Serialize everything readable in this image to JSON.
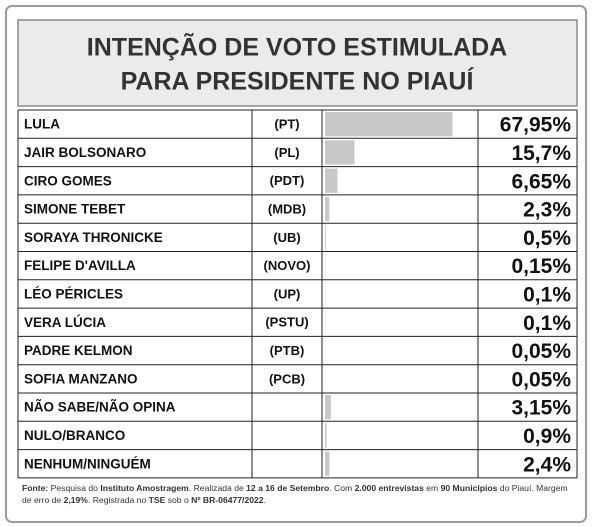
{
  "chart_data": {
    "type": "bar",
    "title": [
      "INTENÇÃO DE VOTO ESTIMULADA",
      "PARA PRESIDENTE NO PIAUÍ"
    ],
    "categories": [
      "LULA",
      "JAIR BOLSONARO",
      "CIRO GOMES",
      "SIMONE TEBET",
      "SORAYA THRONICKE",
      "FELIPE D'AVILLA",
      "LÉO PÉRICLES",
      "VERA LÚCIA",
      "PADRE KELMON",
      "SOFIA MANZANO",
      "NÃO SABE/NÃO OPINA",
      "NULO/BRANCO",
      "NENHUM/NINGUÉM"
    ],
    "parties": [
      "(PT)",
      "(PL)",
      "(PDT)",
      "(MDB)",
      "(UB)",
      "(NOVO)",
      "(UP)",
      "(PSTU)",
      "(PTB)",
      "(PCB)",
      null,
      null,
      null
    ],
    "values": [
      67.95,
      15.7,
      6.65,
      2.3,
      0.5,
      0.15,
      0.1,
      0.1,
      0.05,
      0.05,
      3.15,
      0.9,
      2.4
    ],
    "value_labels": [
      "67,95%",
      "15,7%",
      "6,65%",
      "2,3%",
      "0,5%",
      "0,15%",
      "0,1%",
      "0,1%",
      "0,05%",
      "0,05%",
      "3,15%",
      "0,9%",
      "2,4%"
    ],
    "color": "#c8c8c8",
    "xlim": [
      0,
      80
    ],
    "source": [
      {
        "text": "Fonte: ",
        "bold": true
      },
      {
        "text": "Pesquisa do ",
        "bold": false
      },
      {
        "text": "Instituto Amostragem",
        "bold": true
      },
      {
        "text": ". Realizada de ",
        "bold": false
      },
      {
        "text": "12 a 16 de Setembro",
        "bold": true
      },
      {
        "text": ". Com ",
        "bold": false
      },
      {
        "text": "2.000 entrevistas",
        "bold": true
      },
      {
        "text": " em ",
        "bold": false
      },
      {
        "text": "90 Municípios",
        "bold": true
      },
      {
        "text": " do Piauí. Margem de erro de ",
        "bold": false
      },
      {
        "text": "2,19%",
        "bold": true
      },
      {
        "text": ". Registrada no ",
        "bold": false
      },
      {
        "text": "TSE",
        "bold": true
      },
      {
        "text": " sob o ",
        "bold": false
      },
      {
        "text": "Nº BR-06477/2022",
        "bold": true
      },
      {
        "text": ".",
        "bold": false
      }
    ]
  }
}
